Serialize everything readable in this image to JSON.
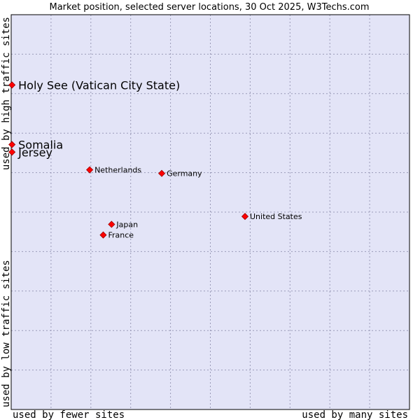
{
  "chart_data": {
    "type": "scatter",
    "title": "Market position, selected server locations, 30 Oct 2025, W3Techs.com",
    "xlabel_left": "used by fewer sites",
    "xlabel_right": "used by many sites",
    "ylabel_bottom": "used by low traffic sites",
    "ylabel_top": "used by high traffic sites",
    "xlim": [
      0,
      100
    ],
    "ylim": [
      0,
      100
    ],
    "grid": true,
    "colors": {
      "plot_bg": "#e3e4f7",
      "grid": "#9a9ab8",
      "border": "#000000",
      "marker": "#ff0000",
      "marker_edge": "#990000"
    },
    "points": [
      {
        "label": "Holy See (Vatican City State)",
        "x": 0.2,
        "y": 82.2,
        "emphasis": true
      },
      {
        "label": "Somalia",
        "x": 0.2,
        "y": 67.1,
        "emphasis": true
      },
      {
        "label": "Jersey",
        "x": 0.2,
        "y": 65.2,
        "emphasis": true
      },
      {
        "label": "Netherlands",
        "x": 19.7,
        "y": 60.7,
        "emphasis": false
      },
      {
        "label": "Germany",
        "x": 37.8,
        "y": 59.8,
        "emphasis": false
      },
      {
        "label": "United States",
        "x": 58.7,
        "y": 48.9,
        "emphasis": false
      },
      {
        "label": "Japan",
        "x": 25.2,
        "y": 46.9,
        "emphasis": false
      },
      {
        "label": "France",
        "x": 23.1,
        "y": 44.2,
        "emphasis": false
      }
    ]
  }
}
